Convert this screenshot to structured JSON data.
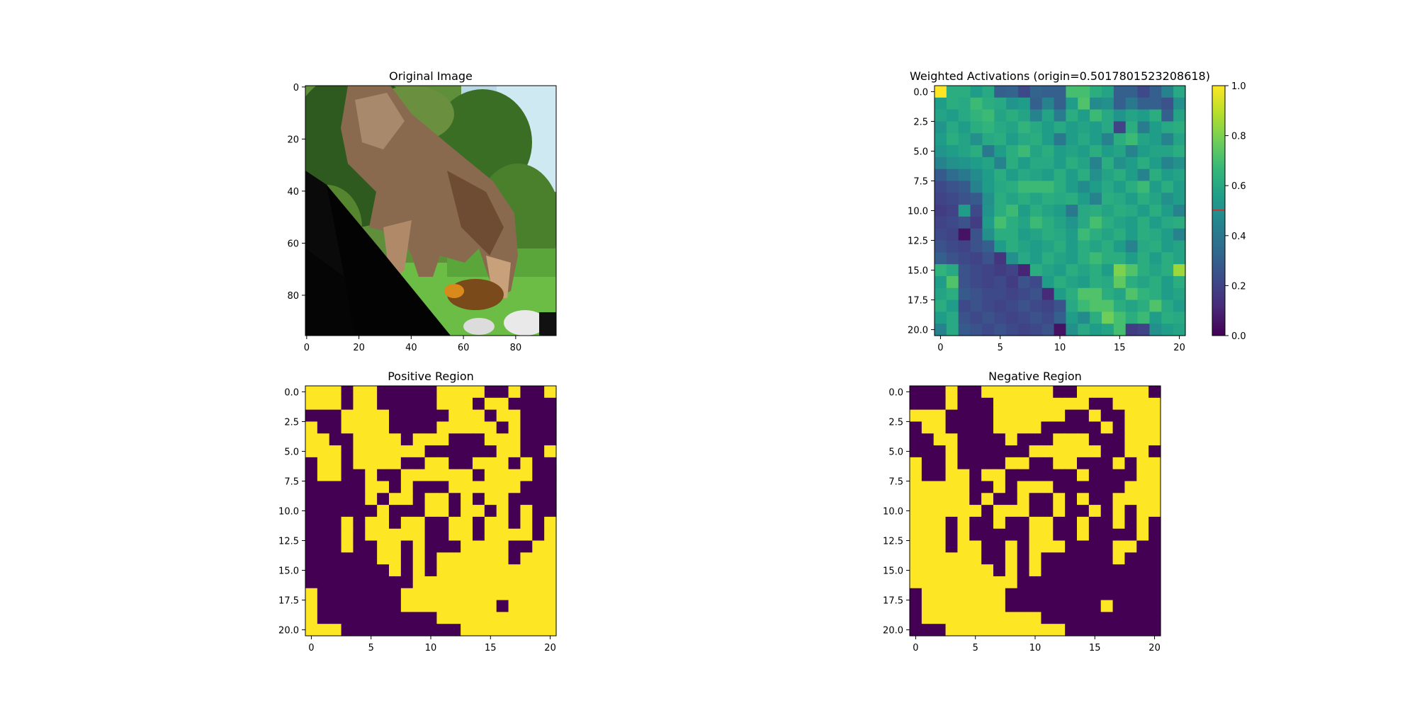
{
  "figure": {
    "background": "#ffffff"
  },
  "chart_data": [
    {
      "id": "original",
      "type": "image",
      "title": "Original Image",
      "xlim": [
        -0.5,
        95.5
      ],
      "ylim": [
        95.5,
        -0.5
      ],
      "xticks": [
        0,
        20,
        40,
        60,
        80
      ],
      "yticks": [
        0,
        20,
        40,
        60,
        80
      ],
      "xtick_labels": [
        "0",
        "20",
        "40",
        "60",
        "80"
      ],
      "ytick_labels": [
        "0",
        "20",
        "40",
        "60",
        "80"
      ],
      "content": "photo of a monkey walking on a dark diagonal beam, trees and sky behind"
    },
    {
      "id": "weighted",
      "type": "heatmap",
      "title": "Weighted Activations (origin=0.5017801523208618)",
      "colormap": "viridis",
      "xlim": [
        -0.5,
        20.5
      ],
      "ylim": [
        20.5,
        -0.5
      ],
      "xticks": [
        0,
        5,
        10,
        15,
        20
      ],
      "yticks": [
        0,
        2.5,
        5,
        7.5,
        10,
        12.5,
        15,
        17.5,
        20
      ],
      "xtick_labels": [
        "0",
        "5",
        "10",
        "15",
        "20"
      ],
      "ytick_labels": [
        "0.0",
        "2.5",
        "5.0",
        "7.5",
        "10.0",
        "12.5",
        "15.0",
        "17.5",
        "20.0"
      ],
      "colorbar": {
        "range": [
          0,
          1
        ],
        "ticks": [
          0,
          0.2,
          0.4,
          0.6,
          0.8,
          1.0
        ],
        "tick_labels": [
          "0.0",
          "0.2",
          "0.4",
          "0.6",
          "0.8",
          "1.0"
        ],
        "marker": 0.5017801523208618,
        "marker_color": "#d62728"
      },
      "values": [
        [
          1.0,
          0.62,
          0.62,
          0.55,
          0.6,
          0.3,
          0.32,
          0.22,
          0.32,
          0.3,
          0.3,
          0.7,
          0.7,
          0.62,
          0.58,
          0.3,
          0.3,
          0.22,
          0.3,
          0.45,
          0.6
        ],
        [
          0.55,
          0.62,
          0.6,
          0.68,
          0.62,
          0.6,
          0.52,
          0.55,
          0.3,
          0.45,
          0.3,
          0.55,
          0.72,
          0.48,
          0.5,
          0.3,
          0.4,
          0.3,
          0.3,
          0.25,
          0.5
        ],
        [
          0.58,
          0.55,
          0.6,
          0.65,
          0.68,
          0.58,
          0.62,
          0.58,
          0.45,
          0.58,
          0.42,
          0.62,
          0.55,
          0.68,
          0.6,
          0.52,
          0.58,
          0.55,
          0.62,
          0.3,
          0.58
        ],
        [
          0.52,
          0.6,
          0.55,
          0.62,
          0.65,
          0.6,
          0.58,
          0.65,
          0.6,
          0.55,
          0.6,
          0.55,
          0.58,
          0.55,
          0.6,
          0.2,
          0.62,
          0.42,
          0.55,
          0.6,
          0.62
        ],
        [
          0.55,
          0.62,
          0.58,
          0.5,
          0.6,
          0.62,
          0.55,
          0.6,
          0.62,
          0.55,
          0.4,
          0.55,
          0.6,
          0.55,
          0.45,
          0.62,
          0.68,
          0.58,
          0.55,
          0.45,
          0.58
        ],
        [
          0.52,
          0.55,
          0.58,
          0.62,
          0.4,
          0.55,
          0.62,
          0.68,
          0.58,
          0.62,
          0.55,
          0.58,
          0.55,
          0.62,
          0.55,
          0.58,
          0.45,
          0.55,
          0.58,
          0.58,
          0.62
        ],
        [
          0.45,
          0.5,
          0.52,
          0.55,
          0.58,
          0.45,
          0.62,
          0.55,
          0.6,
          0.6,
          0.55,
          0.62,
          0.58,
          0.45,
          0.62,
          0.5,
          0.55,
          0.62,
          0.55,
          0.45,
          0.5
        ],
        [
          0.28,
          0.35,
          0.4,
          0.48,
          0.55,
          0.62,
          0.55,
          0.6,
          0.58,
          0.55,
          0.62,
          0.55,
          0.62,
          0.5,
          0.58,
          0.62,
          0.55,
          0.45,
          0.62,
          0.55,
          0.58
        ],
        [
          0.22,
          0.25,
          0.28,
          0.45,
          0.55,
          0.6,
          0.62,
          0.68,
          0.68,
          0.68,
          0.62,
          0.55,
          0.48,
          0.55,
          0.6,
          0.55,
          0.62,
          0.68,
          0.55,
          0.62,
          0.55
        ],
        [
          0.2,
          0.22,
          0.25,
          0.28,
          0.5,
          0.62,
          0.58,
          0.62,
          0.58,
          0.62,
          0.6,
          0.62,
          0.55,
          0.45,
          0.62,
          0.6,
          0.55,
          0.62,
          0.58,
          0.5,
          0.55
        ],
        [
          0.18,
          0.2,
          0.55,
          0.22,
          0.52,
          0.62,
          0.68,
          0.55,
          0.62,
          0.58,
          0.55,
          0.4,
          0.6,
          0.62,
          0.58,
          0.62,
          0.6,
          0.55,
          0.62,
          0.55,
          0.45
        ],
        [
          0.2,
          0.22,
          0.25,
          0.18,
          0.55,
          0.7,
          0.62,
          0.58,
          0.68,
          0.62,
          0.58,
          0.52,
          0.6,
          0.7,
          0.62,
          0.58,
          0.55,
          0.62,
          0.55,
          0.6,
          0.62
        ],
        [
          0.22,
          0.2,
          0.05,
          0.25,
          0.5,
          0.62,
          0.62,
          0.55,
          0.58,
          0.62,
          0.6,
          0.55,
          0.68,
          0.62,
          0.58,
          0.62,
          0.55,
          0.62,
          0.6,
          0.55,
          0.45
        ],
        [
          0.25,
          0.22,
          0.2,
          0.25,
          0.3,
          0.55,
          0.62,
          0.58,
          0.55,
          0.58,
          0.62,
          0.55,
          0.62,
          0.58,
          0.62,
          0.55,
          0.45,
          0.6,
          0.62,
          0.55,
          0.58
        ],
        [
          0.3,
          0.25,
          0.22,
          0.2,
          0.25,
          0.15,
          0.5,
          0.6,
          0.55,
          0.62,
          0.58,
          0.55,
          0.62,
          0.68,
          0.62,
          0.62,
          0.55,
          0.62,
          0.55,
          0.62,
          0.58
        ],
        [
          0.65,
          0.6,
          0.25,
          0.22,
          0.2,
          0.18,
          0.2,
          0.1,
          0.62,
          0.58,
          0.55,
          0.62,
          0.58,
          0.62,
          0.55,
          0.8,
          0.72,
          0.62,
          0.58,
          0.62,
          0.85
        ],
        [
          0.55,
          0.72,
          0.25,
          0.22,
          0.2,
          0.22,
          0.18,
          0.25,
          0.22,
          0.55,
          0.62,
          0.58,
          0.55,
          0.62,
          0.6,
          0.75,
          0.62,
          0.58,
          0.62,
          0.55,
          0.62
        ],
        [
          0.58,
          0.62,
          0.28,
          0.25,
          0.22,
          0.22,
          0.2,
          0.22,
          0.25,
          0.12,
          0.55,
          0.62,
          0.72,
          0.72,
          0.62,
          0.58,
          0.72,
          0.65,
          0.62,
          0.55,
          0.58
        ],
        [
          0.62,
          0.55,
          0.22,
          0.25,
          0.22,
          0.2,
          0.22,
          0.25,
          0.22,
          0.2,
          0.25,
          0.6,
          0.68,
          0.72,
          0.72,
          0.62,
          0.58,
          0.62,
          0.72,
          0.6,
          0.55
        ],
        [
          0.55,
          0.6,
          0.25,
          0.22,
          0.25,
          0.22,
          0.2,
          0.22,
          0.25,
          0.22,
          0.3,
          0.55,
          0.48,
          0.62,
          0.78,
          0.7,
          0.62,
          0.68,
          0.55,
          0.62,
          0.6
        ],
        [
          0.45,
          0.6,
          0.28,
          0.25,
          0.22,
          0.25,
          0.22,
          0.2,
          0.22,
          0.25,
          0.05,
          0.5,
          0.6,
          0.55,
          0.58,
          0.7,
          0.18,
          0.2,
          0.5,
          0.55,
          0.58
        ]
      ]
    },
    {
      "id": "positive",
      "type": "heatmap",
      "title": "Positive Region",
      "colormap": "binary-viridis",
      "colors": [
        "#440154",
        "#fde725"
      ],
      "xlim": [
        -0.5,
        20.5
      ],
      "ylim": [
        20.5,
        -0.5
      ],
      "xticks": [
        0,
        5,
        10,
        15,
        20
      ],
      "yticks": [
        0,
        2.5,
        5,
        7.5,
        10,
        12.5,
        15,
        17.5,
        20
      ],
      "xtick_labels": [
        "0",
        "5",
        "10",
        "15",
        "20"
      ],
      "ytick_labels": [
        "0.0",
        "2.5",
        "5.0",
        "7.5",
        "10.0",
        "12.5",
        "15.0",
        "17.5",
        "20.0"
      ],
      "values": [
        "111011000001111001001",
        "111011000001110110000",
        "000111100000111011000",
        "100111100001111101000",
        "110011110111000111000",
        "111011111100000011001",
        "011011110011001110100",
        "011001001111110111100",
        "000001101000111111000",
        "000001011011010110000",
        "000000100011011010100",
        "000101101100110110101",
        "000101111100110111101",
        "000100110100011110011",
        "000000110101111110111",
        "000000010101111111111",
        "000000000111111111111",
        "100000001111111111111",
        "100000001111111101111",
        "100000000001111111111",
        "111000000000011111111"
      ]
    },
    {
      "id": "negative",
      "type": "heatmap",
      "title": "Negative Region",
      "colormap": "binary-viridis",
      "colors": [
        "#440154",
        "#fde725"
      ],
      "xlim": [
        -0.5,
        20.5
      ],
      "ylim": [
        20.5,
        -0.5
      ],
      "xticks": [
        0,
        5,
        10,
        15,
        20
      ],
      "yticks": [
        0,
        2.5,
        5,
        7.5,
        10,
        12.5,
        15,
        17.5,
        20
      ],
      "xtick_labels": [
        "0",
        "5",
        "10",
        "15",
        "20"
      ],
      "ytick_labels": [
        "0.0",
        "2.5",
        "5.0",
        "7.5",
        "10.0",
        "12.5",
        "15.0",
        "17.5",
        "20.0"
      ],
      "values": [
        "000100111111001111110",
        "000100011111111001111",
        "111000011111100100111",
        "011000011110000010111",
        "001100001000111000111",
        "000100000011111100110",
        "100100001100110001011",
        "100110110000001000011",
        "111110010111000000111",
        "111110100100101001111",
        "111111011100100101011",
        "111010010011001001010",
        "111010000011001000010",
        "111011001011100001100",
        "111111001010000001000",
        "111111101010000000000",
        "111111111000000000000",
        "011111110000000000000",
        "011111110000000010000",
        "011111111110000000000",
        "000111111111100000000"
      ]
    }
  ]
}
